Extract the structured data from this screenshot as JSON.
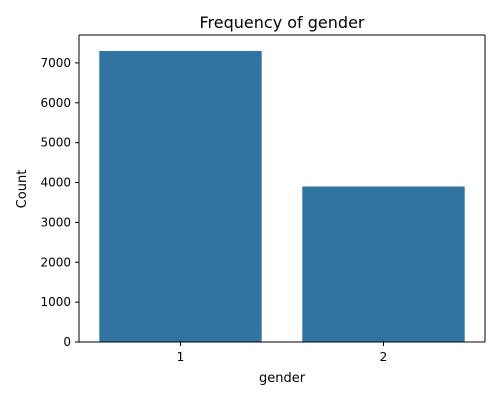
{
  "chart_data": {
    "type": "bar",
    "title": "Frequency of gender",
    "xlabel": "gender",
    "ylabel": "Count",
    "categories": [
      "1",
      "2"
    ],
    "values": [
      7300,
      3900
    ],
    "ylim": [
      0,
      7700
    ],
    "yticks": [
      0,
      1000,
      2000,
      3000,
      4000,
      5000,
      6000,
      7000
    ],
    "grid": false,
    "bar_color": "#3274a1"
  }
}
